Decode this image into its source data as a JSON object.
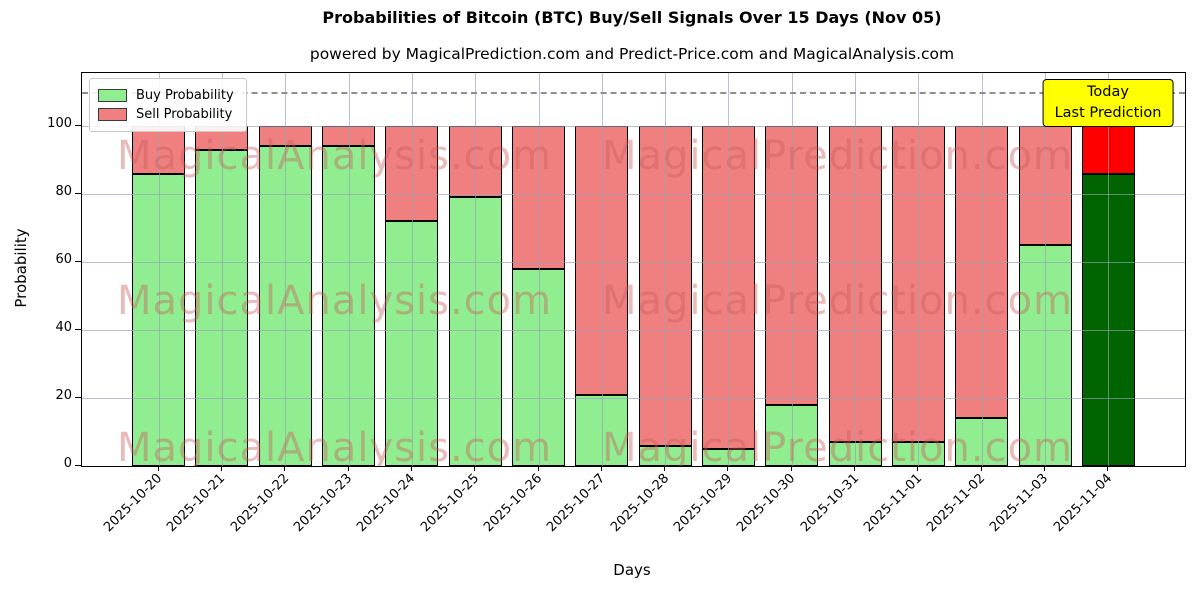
{
  "title": "Probabilities of Bitcoin (BTC) Buy/Sell Signals Over 15 Days (Nov 05)",
  "subtitle": "powered by MagicalPrediction.com and Predict-Price.com and MagicalAnalysis.com",
  "legend": [
    {
      "label": "Buy Probability",
      "color": "#90ee90"
    },
    {
      "label": "Sell Probability",
      "color": "#f08080"
    }
  ],
  "annotation": {
    "line1": "Today",
    "line2": "Last Prediction"
  },
  "watermark": {
    "left_text": "MagicalAnalysis.com",
    "right_text": "MagicalPrediction.com"
  },
  "chart_data": {
    "type": "bar",
    "stacked": true,
    "title": "Probabilities of Bitcoin (BTC) Buy/Sell Signals Over 15 Days (Nov 05)",
    "xlabel": "Days",
    "ylabel": "Probability",
    "categories": [
      "2025-10-20",
      "2025-10-21",
      "2025-10-22",
      "2025-10-23",
      "2025-10-24",
      "2025-10-25",
      "2025-10-26",
      "2025-10-27",
      "2025-10-28",
      "2025-10-29",
      "2025-10-30",
      "2025-10-31",
      "2025-11-01",
      "2025-11-02",
      "2025-11-03",
      "2025-11-04"
    ],
    "series": [
      {
        "name": "Buy Probability",
        "color": "#90ee90",
        "values": [
          86,
          93,
          94,
          94,
          72,
          79,
          58,
          21,
          6,
          5,
          18,
          7,
          7,
          14,
          65,
          86
        ]
      },
      {
        "name": "Sell Probability",
        "color": "#f08080",
        "values": [
          14,
          7,
          6,
          6,
          28,
          21,
          42,
          79,
          94,
          95,
          82,
          93,
          93,
          86,
          35,
          14
        ]
      }
    ],
    "last_bar": {
      "category": "2025-11-04",
      "buy_color": "#006400",
      "sell_color": "#ff0000",
      "note": "Today / Last Prediction"
    },
    "yticks": [
      0,
      20,
      40,
      60,
      80,
      100
    ],
    "ylim": [
      0,
      115.6
    ],
    "dashed_line_y": 110,
    "grid": true,
    "legend_position": "upper left"
  }
}
